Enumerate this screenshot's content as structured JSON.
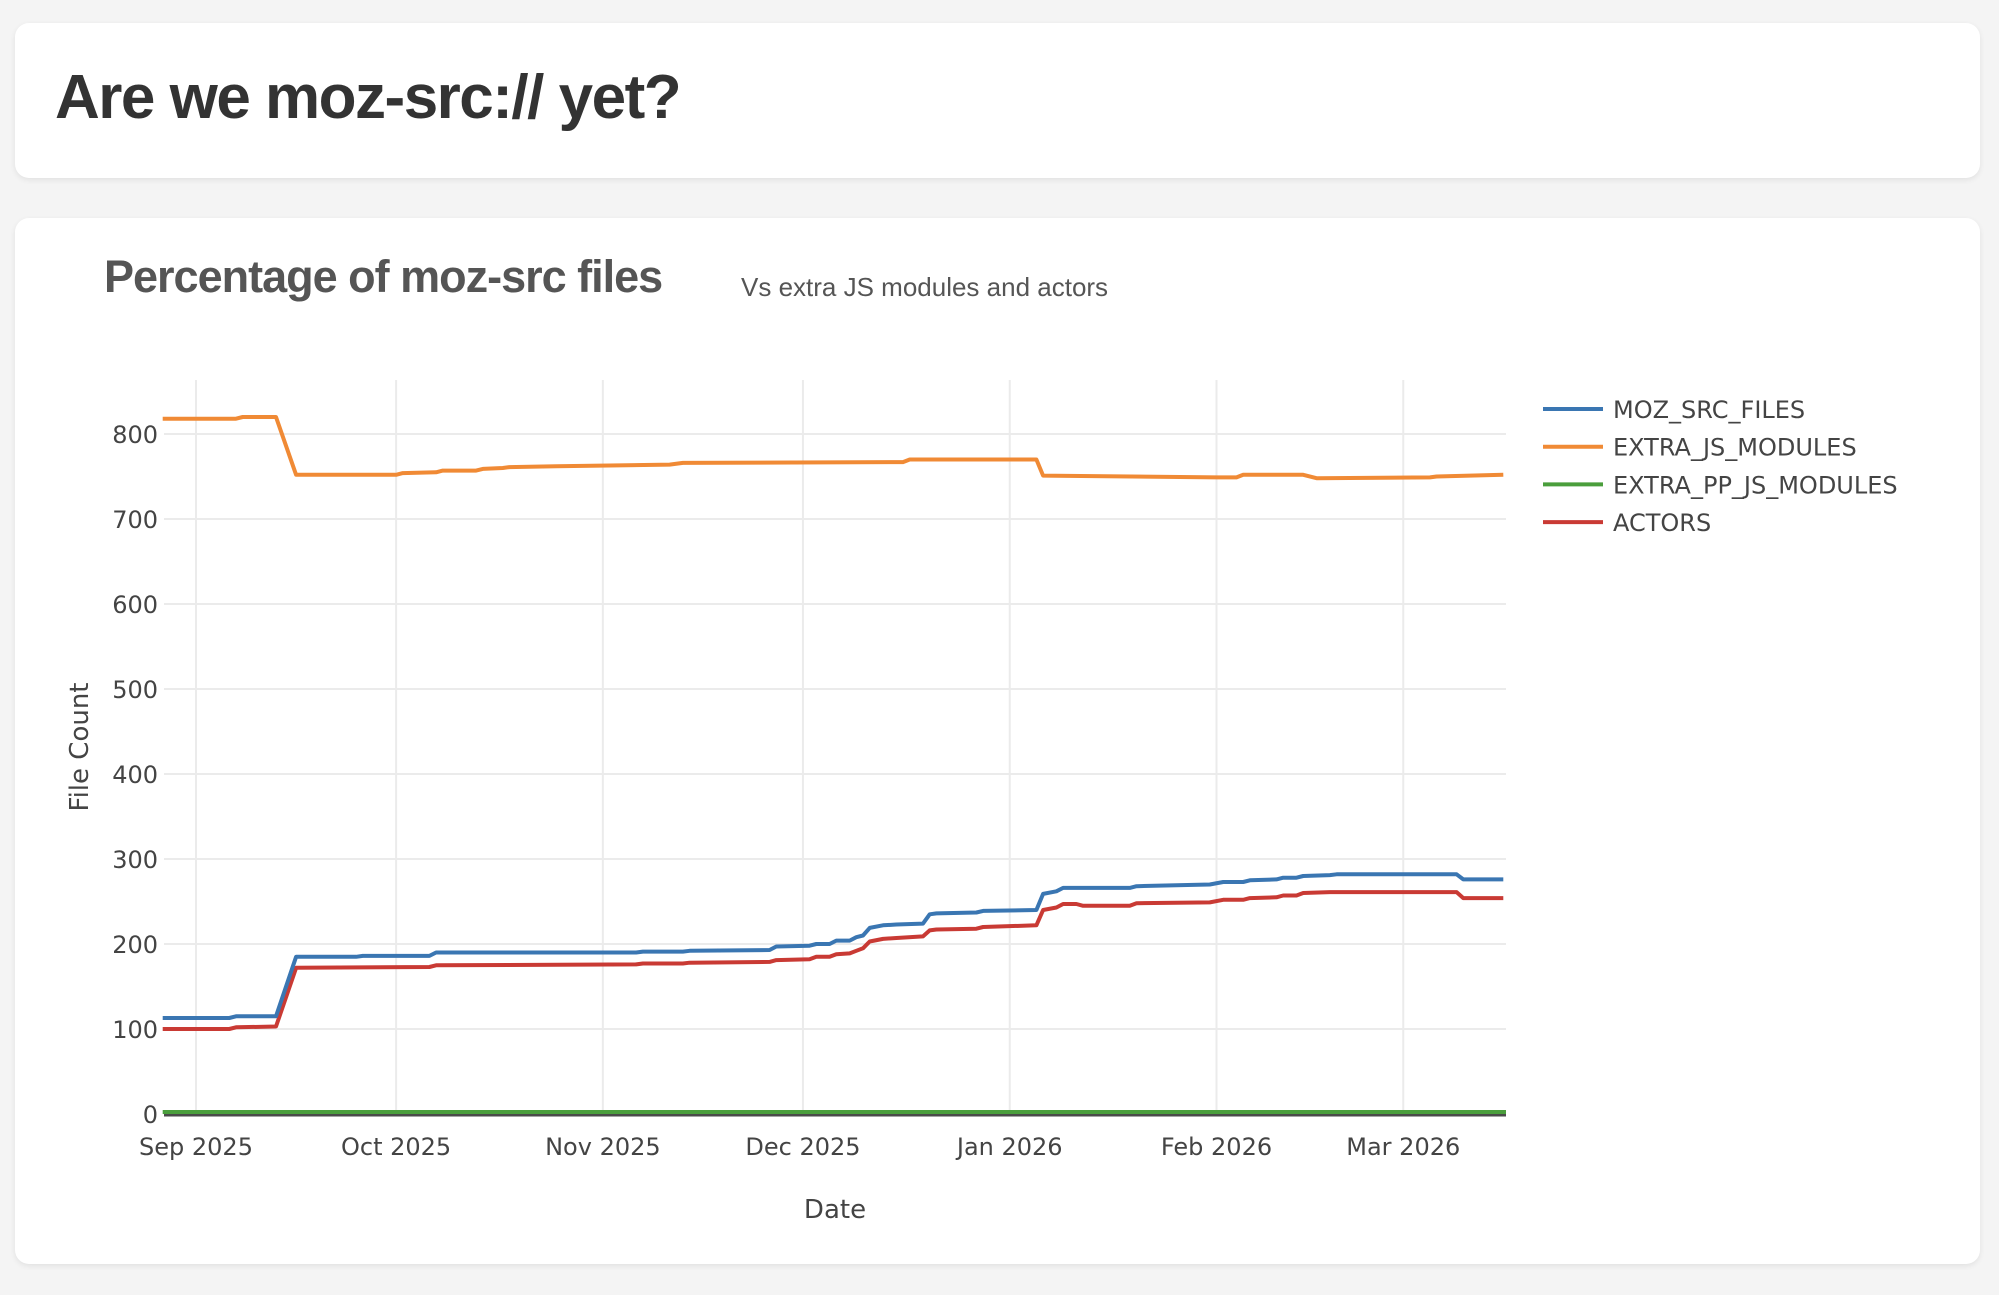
{
  "header": {
    "title": "Are we moz-src:// yet?"
  },
  "chart_card": {
    "title": "Percentage of moz-src files",
    "subtitle": "Vs extra JS modules and actors"
  },
  "colors": {
    "MOZ_SRC_FILES": "#3a76b2",
    "EXTRA_JS_MODULES": "#f08a35",
    "EXTRA_PP_JS_MODULES": "#4a9e3c",
    "ACTORS": "#c93a34",
    "grid": "#ebebeb",
    "background": "#f4f4f4"
  },
  "chart_data": {
    "type": "line",
    "title": "Percentage of moz-src files",
    "subtitle": "Vs extra JS modules and actors",
    "xlabel": "Date",
    "ylabel": "File Count",
    "ylim": [
      0,
      860
    ],
    "xlim": [
      "2025-08-27",
      "2026-03-16"
    ],
    "yticks": [
      0,
      100,
      200,
      300,
      400,
      500,
      600,
      700,
      800
    ],
    "xticks": [
      {
        "date": "2025-09-01",
        "label": "Sep 2025"
      },
      {
        "date": "2025-10-01",
        "label": "Oct 2025"
      },
      {
        "date": "2025-11-01",
        "label": "Nov 2025"
      },
      {
        "date": "2025-12-01",
        "label": "Dec 2025"
      },
      {
        "date": "2026-01-01",
        "label": "Jan 2026"
      },
      {
        "date": "2026-02-01",
        "label": "Feb 2026"
      },
      {
        "date": "2026-03-01",
        "label": "Mar 2026"
      }
    ],
    "grid": true,
    "legend_position": "right-top",
    "series": [
      {
        "name": "MOZ_SRC_FILES",
        "points": [
          [
            "2025-08-27",
            113
          ],
          [
            "2025-09-06",
            113
          ],
          [
            "2025-09-07",
            115
          ],
          [
            "2025-09-13",
            115
          ],
          [
            "2025-09-16",
            185
          ],
          [
            "2025-09-25",
            185
          ],
          [
            "2025-09-26",
            186
          ],
          [
            "2025-10-06",
            186
          ],
          [
            "2025-10-07",
            190
          ],
          [
            "2025-11-06",
            190
          ],
          [
            "2025-11-07",
            191
          ],
          [
            "2025-11-13",
            191
          ],
          [
            "2025-11-14",
            192
          ],
          [
            "2025-11-26",
            193
          ],
          [
            "2025-11-27",
            197
          ],
          [
            "2025-12-02",
            198
          ],
          [
            "2025-12-03",
            200
          ],
          [
            "2025-12-05",
            200
          ],
          [
            "2025-12-06",
            204
          ],
          [
            "2025-12-08",
            204
          ],
          [
            "2025-12-09",
            208
          ],
          [
            "2025-12-10",
            210
          ],
          [
            "2025-12-11",
            219
          ],
          [
            "2025-12-13",
            222
          ],
          [
            "2025-12-15",
            223
          ],
          [
            "2025-12-19",
            224
          ],
          [
            "2025-12-20",
            235
          ],
          [
            "2025-12-21",
            236
          ],
          [
            "2025-12-27",
            237
          ],
          [
            "2025-12-28",
            239
          ],
          [
            "2026-01-05",
            240
          ],
          [
            "2026-01-06",
            259
          ],
          [
            "2026-01-08",
            262
          ],
          [
            "2026-01-09",
            266
          ],
          [
            "2026-01-19",
            266
          ],
          [
            "2026-01-20",
            268
          ],
          [
            "2026-01-31",
            270
          ],
          [
            "2026-02-02",
            273
          ],
          [
            "2026-02-05",
            273
          ],
          [
            "2026-02-06",
            275
          ],
          [
            "2026-02-10",
            276
          ],
          [
            "2026-02-11",
            278
          ],
          [
            "2026-02-13",
            278
          ],
          [
            "2026-02-14",
            280
          ],
          [
            "2026-02-18",
            281
          ],
          [
            "2026-02-19",
            282
          ],
          [
            "2026-03-09",
            282
          ],
          [
            "2026-03-10",
            276
          ],
          [
            "2026-03-16",
            276
          ]
        ]
      },
      {
        "name": "EXTRA_JS_MODULES",
        "points": [
          [
            "2025-08-27",
            818
          ],
          [
            "2025-09-07",
            818
          ],
          [
            "2025-09-08",
            820
          ],
          [
            "2025-09-13",
            820
          ],
          [
            "2025-09-16",
            752
          ],
          [
            "2025-10-01",
            752
          ],
          [
            "2025-10-02",
            754
          ],
          [
            "2025-10-07",
            755
          ],
          [
            "2025-10-08",
            757
          ],
          [
            "2025-10-13",
            757
          ],
          [
            "2025-10-14",
            759
          ],
          [
            "2025-10-17",
            760
          ],
          [
            "2025-10-18",
            761
          ],
          [
            "2025-10-25",
            762
          ],
          [
            "2025-11-11",
            764
          ],
          [
            "2025-11-13",
            766
          ],
          [
            "2025-12-16",
            767
          ],
          [
            "2025-12-17",
            770
          ],
          [
            "2026-01-05",
            770
          ],
          [
            "2026-01-06",
            751
          ],
          [
            "2026-02-01",
            749
          ],
          [
            "2026-02-04",
            749
          ],
          [
            "2026-02-05",
            752
          ],
          [
            "2026-02-14",
            752
          ],
          [
            "2026-02-16",
            748
          ],
          [
            "2026-03-05",
            749
          ],
          [
            "2026-03-06",
            750
          ],
          [
            "2026-03-16",
            752
          ]
        ]
      },
      {
        "name": "EXTRA_PP_JS_MODULES",
        "points": [
          [
            "2025-08-27",
            0
          ],
          [
            "2026-03-16",
            0
          ]
        ]
      },
      {
        "name": "ACTORS",
        "points": [
          [
            "2025-08-27",
            100
          ],
          [
            "2025-09-06",
            100
          ],
          [
            "2025-09-07",
            102
          ],
          [
            "2025-09-13",
            103
          ],
          [
            "2025-09-16",
            172
          ],
          [
            "2025-10-06",
            173
          ],
          [
            "2025-10-07",
            175
          ],
          [
            "2025-11-06",
            176
          ],
          [
            "2025-11-07",
            177
          ],
          [
            "2025-11-13",
            177
          ],
          [
            "2025-11-14",
            178
          ],
          [
            "2025-11-26",
            179
          ],
          [
            "2025-11-27",
            181
          ],
          [
            "2025-12-02",
            182
          ],
          [
            "2025-12-03",
            185
          ],
          [
            "2025-12-05",
            185
          ],
          [
            "2025-12-06",
            188
          ],
          [
            "2025-12-08",
            189
          ],
          [
            "2025-12-09",
            192
          ],
          [
            "2025-12-10",
            195
          ],
          [
            "2025-12-11",
            203
          ],
          [
            "2025-12-13",
            206
          ],
          [
            "2025-12-15",
            207
          ],
          [
            "2025-12-19",
            209
          ],
          [
            "2025-12-20",
            216
          ],
          [
            "2025-12-21",
            217
          ],
          [
            "2025-12-27",
            218
          ],
          [
            "2025-12-28",
            220
          ],
          [
            "2026-01-05",
            222
          ],
          [
            "2026-01-06",
            240
          ],
          [
            "2026-01-08",
            243
          ],
          [
            "2026-01-09",
            247
          ],
          [
            "2026-01-11",
            247
          ],
          [
            "2026-01-12",
            245
          ],
          [
            "2026-01-19",
            245
          ],
          [
            "2026-01-20",
            248
          ],
          [
            "2026-01-31",
            249
          ],
          [
            "2026-02-02",
            252
          ],
          [
            "2026-02-05",
            252
          ],
          [
            "2026-02-06",
            254
          ],
          [
            "2026-02-10",
            255
          ],
          [
            "2026-02-11",
            257
          ],
          [
            "2026-02-13",
            257
          ],
          [
            "2026-02-14",
            260
          ],
          [
            "2026-02-18",
            261
          ],
          [
            "2026-03-09",
            261
          ],
          [
            "2026-03-10",
            254
          ],
          [
            "2026-03-16",
            254
          ]
        ]
      }
    ]
  }
}
